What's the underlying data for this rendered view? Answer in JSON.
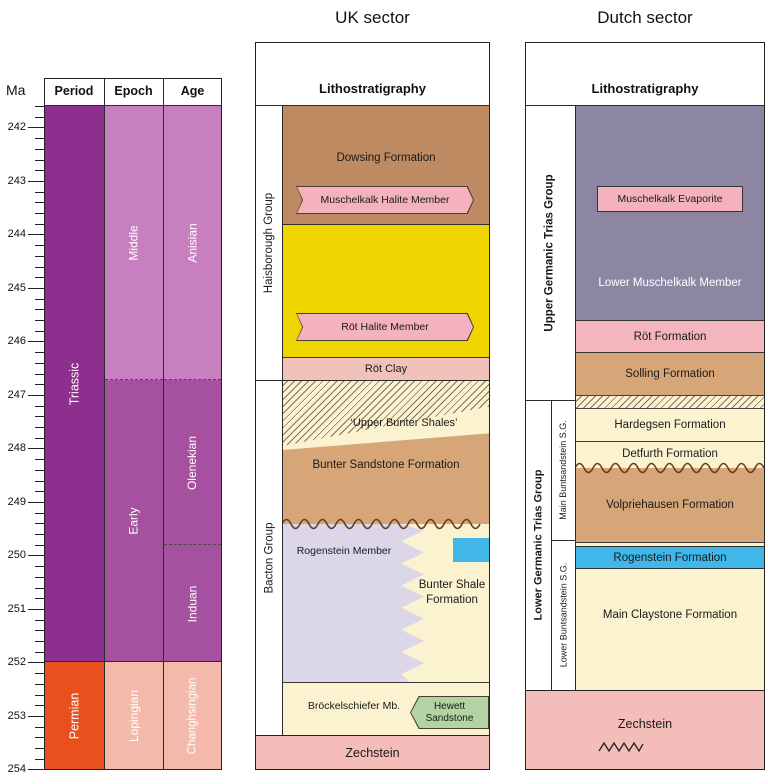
{
  "axis": {
    "unit_label": "Ma",
    "tick_labels": [
      "242",
      "243",
      "244",
      "245",
      "246",
      "247",
      "248",
      "249",
      "250",
      "251",
      "252",
      "253",
      "254"
    ]
  },
  "timescale": {
    "headers": {
      "period": "Period",
      "epoch": "Epoch",
      "age": "Age"
    },
    "periods": {
      "triassic": "Triassic",
      "permian": "Permian"
    },
    "epochs": {
      "middle": "Middle",
      "early": "Early",
      "lopingian": "Lopingian"
    },
    "ages": {
      "anisian": "Anisian",
      "olenekian": "Olenekian",
      "induan": "Induan",
      "changhsingian": "Changhsingian"
    }
  },
  "uk": {
    "title": "UK sector",
    "litho_header": "Lithostratigraphy",
    "groups": {
      "haisborough": "Haisborough Group",
      "bacton": "Bacton Group"
    },
    "units": {
      "dowsing": "Dowsing Formation",
      "muschelkalk_halite": "Muschelkalk Halite Member",
      "rot_halite": "Röt Halite Member",
      "rot_clay": "Röt Clay",
      "upper_bunter_shales": "‘Upper Bunter Shales’",
      "bunter_sandstone": "Bunter Sandstone Formation",
      "rogenstein_member": "Rogenstein Member",
      "bunter_shale": "Bunter Shale Formation",
      "brockelschiefer": "Bröckelschiefer Mb.",
      "hewett": "Hewett Sandstone",
      "zechstein": "Zechstein"
    }
  },
  "dutch": {
    "title": "Dutch sector",
    "litho_header": "Lithostratigraphy",
    "groups": {
      "upper_germanic": "Upper Germanic Trias Group",
      "lower_germanic": "Lower Germanic Trias Group",
      "main_buntsandstein": "Main Buntsandstein S.G.",
      "lower_buntsandstein": "Lower Buntsandstein S.G."
    },
    "units": {
      "muschelkalk_evaporite": "Muschelkalk Evaporite",
      "lower_muschelkalk": "Lower Muschelkalk Member",
      "rot_formation": "Röt Formation",
      "solling": "Solling Formation",
      "hardegsen": "Hardegsen Formation",
      "detfurth": "Detfurth Formation",
      "volpriehausen": "Volpriehausen Formation",
      "rogenstein": "Rogenstein Formation",
      "main_claystone": "Main Claystone Formation",
      "zechstein": "Zechstein"
    }
  },
  "palette": {
    "triassic_purple": "#8D2F8F",
    "permian_red": "#E8501E",
    "middle_orchid": "#C77FC0",
    "early_purple": "#A5519F",
    "lopingian_pink": "#F3BAAB",
    "dowsing_brown": "#BD8A61",
    "halite_yellow": "#EFD500",
    "banner_pink": "#F3B2BE",
    "rot_pink": "#F3B6BC",
    "cream": "#FBF3CF",
    "sandstone_tan": "#D7A678",
    "rogenstein_lavender": "#DCD6E9",
    "rogenstein_blue": "#41B6E8",
    "hewett_green": "#B2D3A2",
    "muschelkalk_slate": "#8C86A2",
    "zechstein_pink": "#F5BDB9",
    "unconformity_brown": "#6B3A1F"
  }
}
